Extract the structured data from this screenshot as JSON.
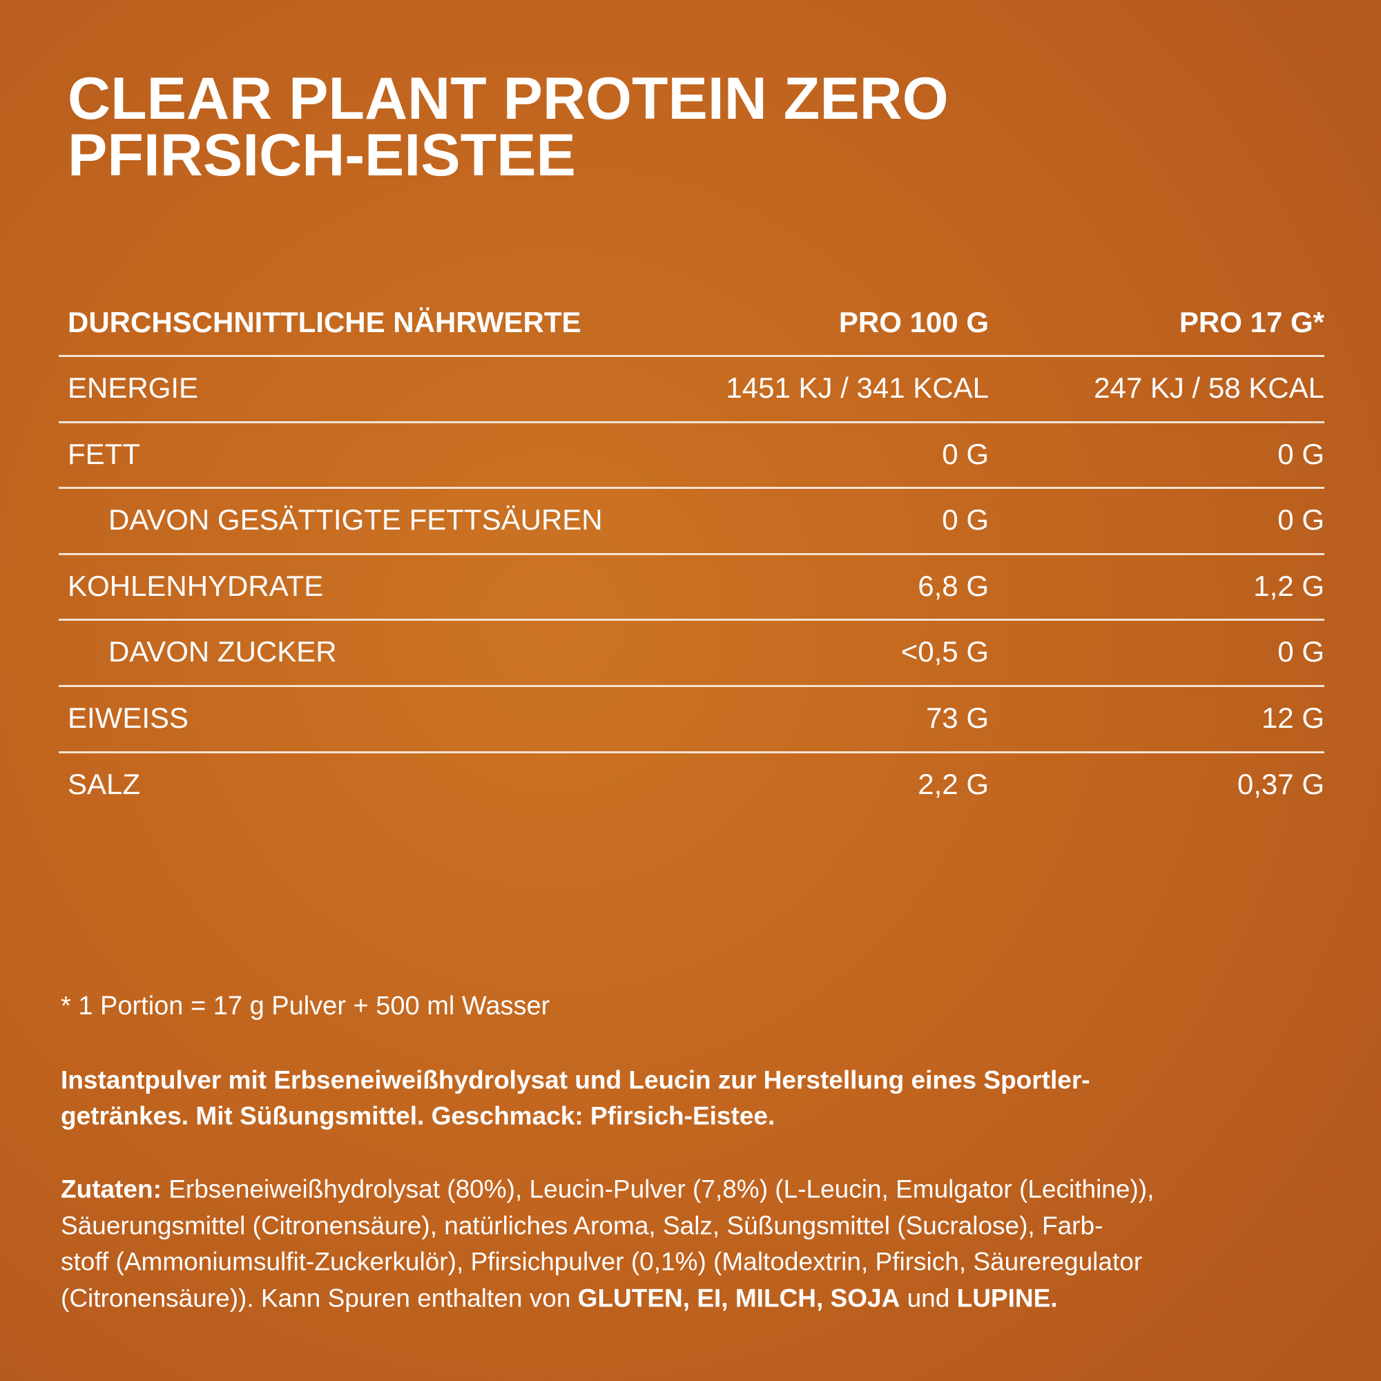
{
  "header": {
    "title_lines": [
      "CLEAR PLANT PROTEIN ZERO",
      "PFIRSICH-EISTEE"
    ]
  },
  "table": {
    "columns": [
      "DURCHSCHNITTLICHE NÄHRWERTE",
      "PRO 100 G",
      "PRO 17 G*"
    ],
    "rows": [
      {
        "label": "ENERGIE",
        "indent": false,
        "cells": [
          "1451 KJ / 341 KCAL",
          "247 KJ / 58 KCAL"
        ]
      },
      {
        "label": "FETT",
        "indent": false,
        "cells": [
          "0 G",
          "0 G"
        ]
      },
      {
        "label": "DAVON GESÄTTIGTE FETTSÄUREN",
        "indent": true,
        "cells": [
          "0 G",
          "0 G"
        ]
      },
      {
        "label": "KOHLENHYDRATE",
        "indent": false,
        "cells": [
          "6,8 G",
          "1,2 G"
        ]
      },
      {
        "label": "DAVON ZUCKER",
        "indent": true,
        "cells": [
          "<0,5 G",
          "0 G"
        ]
      },
      {
        "label": "EIWEISS",
        "indent": false,
        "cells": [
          "73 G",
          "12 G"
        ]
      },
      {
        "label": "SALZ",
        "indent": false,
        "cells": [
          "2,2 G",
          "0,37 G"
        ]
      }
    ]
  },
  "footnote": "* 1 Portion = 17 g Pulver + 500 ml Wasser",
  "description_lines": [
    "Instantpulver mit Erbseneiweißhydrolysat und Leucin zur Herstellung eines Sportler-",
    "getränkes. Mit Süßungsmittel. Geschmack: Pfirsich-Eistee."
  ],
  "ingredients_lines": [
    [
      {
        "text": "Zutaten:",
        "bold": true
      },
      {
        "text": " Erbseneiweißhydrolysat (80%), Leucin-Pulver (7,8%) (L-Leucin, Emulgator (Lecithine)),",
        "bold": false
      }
    ],
    [
      {
        "text": "Säuerungsmittel (Citronensäure), natürliches Aroma, Salz, Süßungsmittel (Sucralose), Farb-",
        "bold": false
      }
    ],
    [
      {
        "text": "stoff (Ammoniumsulfit-Zuckerkulör), Pfirsichpulver (0,1%) (Maltodextrin, Pfirsich, Säureregulator",
        "bold": false
      }
    ],
    [
      {
        "text": "(Citronensäure)). Kann Spuren enthalten von ",
        "bold": false
      },
      {
        "text": "GLUTEN, EI, MILCH, SOJA",
        "bold": true
      },
      {
        "text": " und ",
        "bold": false
      },
      {
        "text": "LUPINE.",
        "bold": true
      }
    ]
  ]
}
